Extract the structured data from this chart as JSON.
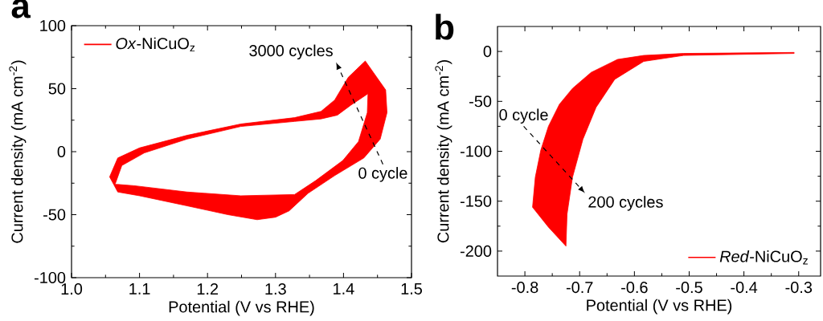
{
  "chart_data": [
    {
      "type": "area",
      "title": "a",
      "xlabel": "Potential (V vs RHE)",
      "ylabel": "Current density (mA cm$^{-2}$)",
      "xlim": [
        1.0,
        1.5
      ],
      "ylim": [
        -100,
        100
      ],
      "xticks": [
        {
          "value": 1.0,
          "label": "1.0"
        },
        1.1,
        1.2,
        1.3,
        1.4,
        1.5
      ],
      "yticks": [
        -100,
        -50,
        0,
        50,
        100
      ],
      "legend": "top left",
      "series": [
        {
          "name": "*Ox*-NiCuO$_{z}$",
          "color": "#ff0000",
          "x": [
            1.056,
            1.068,
            1.1,
            1.17,
            1.249,
            1.328,
            1.367,
            1.387,
            1.407,
            1.432,
            1.462,
            1.464,
            1.454,
            1.43,
            1.387,
            1.348,
            1.32,
            1.3,
            1.273,
            1.23,
            1.17,
            1.1,
            1.068,
            1.062,
            1.056,
            null,
            1.064,
            1.074,
            1.107,
            1.17,
            1.249,
            1.328,
            1.367,
            1.391,
            1.411,
            1.436,
            1.435,
            1.422,
            1.399,
            1.359,
            1.328,
            1.249,
            1.17,
            1.092,
            1.068,
            1.064
          ],
          "values": [
            -20,
            -5,
            3,
            13,
            22,
            27,
            32,
            41,
            59,
            72,
            49,
            31,
            10,
            -5,
            -19,
            -33,
            -47,
            -52,
            -54,
            -50,
            -43,
            -35,
            -32,
            -26,
            -20,
            null,
            -26,
            -11,
            -1,
            10,
            20,
            24,
            26,
            29,
            37,
            46,
            31,
            8,
            -7,
            -23,
            -34,
            -35,
            -32,
            -27,
            -26,
            -26
          ]
        }
      ],
      "annotations": [
        "0 cycle",
        "3000 cycles"
      ]
    },
    {
      "type": "area",
      "title": "b",
      "xlabel": "Potential (V vs RHE)",
      "ylabel": "Current density (mA cm$^{-2}$)",
      "xlim": [
        -0.85,
        -0.26
      ],
      "ylim": [
        -225,
        25
      ],
      "xticks": [
        -0.8,
        -0.7,
        -0.6,
        -0.5,
        -0.4,
        -0.3
      ],
      "yticks": [
        -200,
        -150,
        -100,
        -50,
        0
      ],
      "legend": "bottom right",
      "series": [
        {
          "name": "*Red*-NiCuO$_{z}$",
          "color": "#ff0000",
          "x": [
            -0.308,
            -0.51,
            -0.583,
            -0.631,
            -0.679,
            -0.713,
            -0.737,
            -0.757,
            -0.771,
            -0.781,
            -0.786,
            -0.757,
            -0.725,
            -0.723,
            -0.713,
            -0.694,
            -0.67,
            -0.636,
            -0.583,
            -0.51,
            -0.308
          ],
          "values": [
            -1,
            -2,
            -4,
            -8,
            -21,
            -37,
            -53,
            -75,
            -99,
            -126,
            -156,
            -176,
            -195,
            -163,
            -126,
            -88,
            -56,
            -28,
            -10,
            -4,
            -2
          ]
        }
      ],
      "annotations": [
        "0 cycle",
        "200 cycles"
      ]
    }
  ]
}
